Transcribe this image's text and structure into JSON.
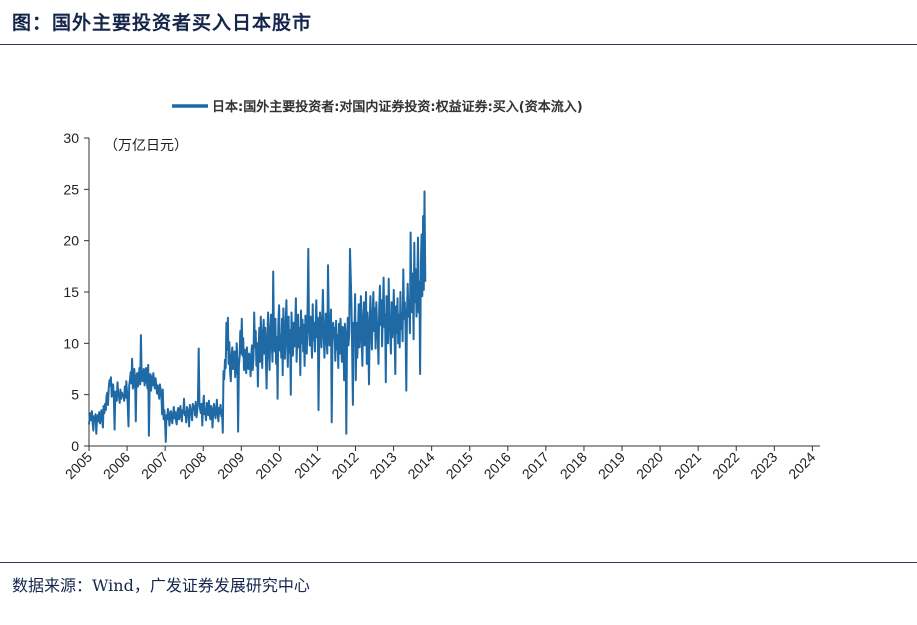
{
  "header": {
    "title": "图：国外主要投资者买入日本股市"
  },
  "footer": {
    "source": "数据来源：Wind，广发证券发展研究中心"
  },
  "colors": {
    "series": "#1f6aa5",
    "axis": "#333333"
  },
  "chart_data": {
    "type": "line",
    "title": "",
    "legend": "日本:国外主要投资者:对国内证券投资:权益证券:买入(资本流入)",
    "legend_position": "top-center",
    "unit_label": "（万亿日元）",
    "ylim": [
      0,
      30
    ],
    "yticks": [
      0,
      5,
      10,
      15,
      20,
      25,
      30
    ],
    "xlim": [
      2005,
      2024.2
    ],
    "xtick_labels": [
      "2005",
      "2006",
      "2007",
      "2008",
      "2009",
      "2010",
      "2011",
      "2012",
      "2013",
      "2014",
      "2015",
      "2016",
      "2017",
      "2018",
      "2019",
      "2020",
      "2021",
      "2022",
      "2023",
      "2024"
    ],
    "series": [
      {
        "name": "日本:国外主要投资者:对国内证券投资:权益证券:买入(资本流入)",
        "x_start": 2005.0,
        "x_step": 0.0192,
        "values": [
          2.1,
          2.8,
          3.2,
          2.5,
          3.4,
          2.2,
          1.5,
          2.9,
          2.7,
          3.1,
          1.2,
          2.6,
          3.0,
          2.4,
          3.3,
          2.2,
          2.8,
          3.5,
          2.5,
          1.8,
          3.9,
          3.2,
          4.1,
          3.5,
          4.8,
          5.2,
          4.0,
          5.6,
          6.4,
          5.9,
          6.7,
          4.8,
          5.5,
          6.0,
          4.6,
          1.6,
          5.3,
          5.0,
          4.4,
          6.2,
          5.1,
          4.8,
          4.2,
          5.5,
          4.6,
          5.2,
          4.9,
          5.0,
          4.4,
          5.8,
          4.7,
          6.3,
          5.3,
          4.1,
          1.9,
          5.9,
          6.4,
          7.2,
          6.1,
          8.5,
          5.6,
          6.0,
          7.5,
          6.4,
          2.4,
          6.8,
          7.1,
          5.8,
          6.6,
          7.6,
          6.0,
          10.8,
          7.2,
          6.3,
          6.9,
          7.5,
          5.9,
          6.7,
          7.6,
          6.4,
          5.6,
          7.9,
          1.0,
          6.2,
          7.0,
          5.4,
          6.8,
          5.9,
          7.1,
          6.3,
          5.6,
          6.6,
          6.0,
          5.1,
          5.9,
          5.3,
          4.6,
          6.0,
          5.5,
          4.9,
          3.1,
          5.5,
          2.6,
          3.5,
          2.4,
          0.4,
          3.0,
          2.6,
          3.6,
          3.2,
          2.0,
          2.7,
          3.4,
          2.8,
          2.2,
          3.1,
          3.8,
          2.7,
          3.3,
          2.5,
          2.1,
          3.4,
          3.7,
          2.6,
          3.0,
          3.9,
          2.9,
          2.4,
          3.5,
          3.2,
          4.6,
          3.0,
          3.3,
          2.3,
          3.8,
          3.5,
          3.1,
          1.9,
          4.0,
          3.6,
          3.2,
          2.5,
          4.1,
          3.6,
          3.9,
          3.0,
          4.3,
          2.8,
          3.4,
          4.2,
          9.5,
          4.3,
          3.6,
          3.2,
          4.1,
          2.0,
          3.8,
          4.9,
          3.1,
          3.6,
          2.5,
          4.2,
          3.8,
          3.0,
          4.4,
          3.2,
          2.6,
          3.9,
          3.4,
          1.8,
          3.5,
          4.1,
          3.3,
          2.7,
          3.6,
          4.5,
          3.1,
          2.4,
          3.7,
          3.2,
          4.0,
          2.9,
          3.5,
          1.3,
          7.3,
          6.5,
          8.4,
          7.6,
          12.0,
          9.4,
          12.5,
          8.0,
          10.1,
          7.2,
          6.3,
          8.6,
          9.6,
          7.5,
          8.1,
          9.2,
          6.7,
          7.6,
          10.0,
          8.3,
          1.4,
          7.8,
          8.7,
          11.2,
          9.0,
          12.4,
          8.8,
          10.5,
          7.4,
          9.4,
          8.6,
          7.1,
          9.6,
          8.2,
          7.5,
          9.0,
          8.4,
          6.8,
          8.9,
          9.8,
          7.4,
          8.5,
          13.0,
          9.6,
          11.2,
          7.8,
          10.0,
          5.8,
          9.4,
          11.5,
          8.2,
          12.6,
          10.0,
          7.6,
          10.9,
          12.3,
          9.0,
          11.5,
          8.4,
          5.6,
          10.7,
          13.0,
          9.5,
          7.4,
          11.4,
          12.8,
          10.1,
          8.2,
          17.0,
          11.0,
          9.2,
          12.4,
          8.0,
          10.6,
          4.6,
          11.8,
          13.7,
          9.3,
          10.8,
          8.6,
          12.4,
          6.9,
          13.4,
          9.8,
          8.5,
          11.6,
          14.2,
          10.2,
          7.7,
          12.6,
          9.1,
          11.3,
          5.0,
          13.0,
          10.4,
          8.8,
          12.0,
          9.7,
          11.1,
          14.4,
          8.2,
          10.7,
          12.8,
          9.6,
          11.5,
          6.9,
          13.2,
          10.0,
          12.3,
          9.2,
          11.8,
          7.8,
          12.7,
          10.5,
          9.0,
          13.6,
          19.2,
          11.5,
          9.8,
          12.6,
          10.8,
          8.6,
          13.8,
          10.3,
          12.0,
          9.2,
          11.4,
          14.2,
          10.6,
          12.5,
          3.5,
          10.0,
          13.0,
          11.7,
          9.6,
          12.3,
          15.2,
          11.0,
          8.6,
          10.8,
          12.9,
          10.4,
          9.0,
          17.6,
          12.4,
          9.8,
          11.5,
          13.3,
          2.3,
          9.7,
          12.0,
          10.5,
          11.5,
          8.3,
          12.2,
          9.4,
          10.8,
          7.6,
          11.9,
          9.0,
          12.4,
          10.3,
          8.2,
          11.6,
          10.5,
          6.4,
          11.9,
          10.6,
          1.2,
          10.0,
          12.5,
          9.8,
          11.0,
          19.2,
          16.6,
          14.0,
          9.0,
          4.0,
          12.0,
          10.5,
          14.8,
          6.4,
          12.0,
          8.6,
          11.0,
          13.8,
          9.6,
          12.5,
          14.6,
          10.0,
          7.8,
          12.4,
          14.0,
          9.8,
          11.6,
          15.0,
          8.0,
          13.0,
          10.8,
          6.0,
          12.0,
          14.6,
          11.0,
          9.4,
          12.8,
          15.0,
          11.2,
          13.4,
          9.5,
          14.0,
          12.0,
          10.8,
          8.0,
          13.4,
          15.6,
          11.8,
          14.2,
          9.7,
          13.4,
          16.4,
          11.6,
          12.8,
          6.2,
          14.6,
          12.2,
          10.0,
          16.3,
          12.6,
          11.0,
          9.0,
          14.0,
          10.6,
          12.6,
          15.2,
          10.8,
          7.0,
          13.6,
          11.0,
          14.4,
          10.0,
          12.8,
          9.6,
          15.0,
          11.4,
          13.0,
          10.2,
          17.2,
          12.4,
          14.0,
          11.6,
          5.4,
          13.0,
          15.8,
          12.6,
          14.2,
          11.0,
          20.8,
          14.8,
          13.0,
          16.8,
          10.4,
          19.8,
          14.0,
          17.2,
          12.6,
          15.4,
          20.3,
          13.0,
          16.0,
          7.0,
          18.0,
          20.6,
          14.6,
          22.4,
          15.2,
          24.8,
          16.0
        ]
      }
    ]
  }
}
